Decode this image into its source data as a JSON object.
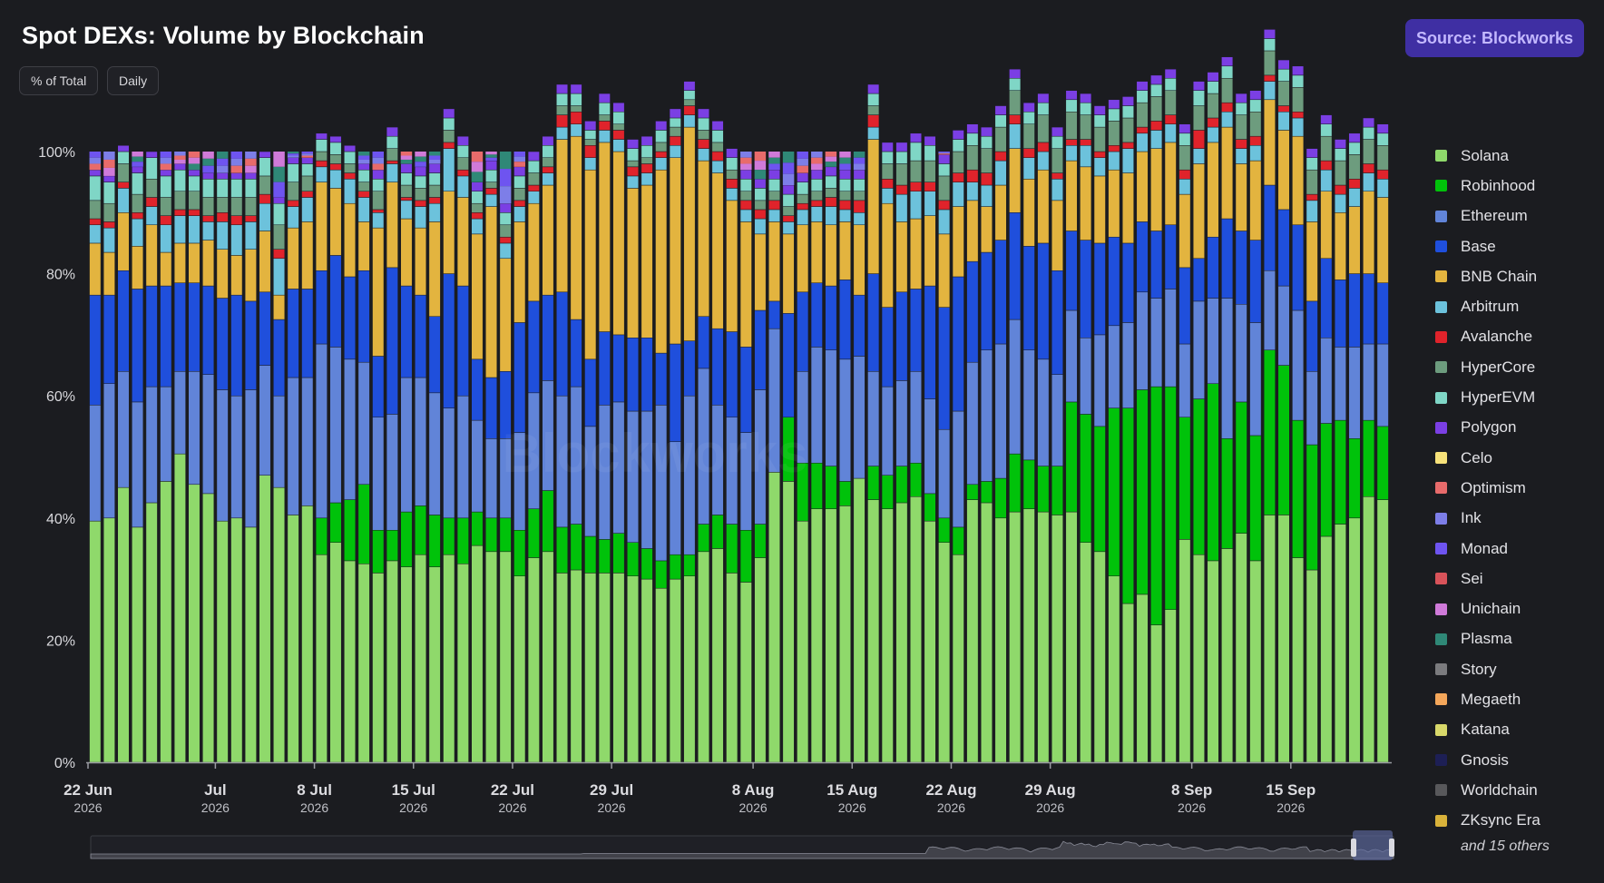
{
  "header": {
    "title": "Spot DEXs: Volume by Blockchain",
    "pill_percent": "% of Total",
    "pill_interval": "Daily",
    "source_label": "Source: Blockworks",
    "watermark": "Blockworks"
  },
  "legend_more": "and 15 others",
  "chart_data": {
    "type": "bar",
    "stacked": true,
    "normalized": true,
    "title": "Spot DEXs: Volume by Blockchain",
    "xlabel": "",
    "ylabel": "",
    "ylim": [
      0,
      100
    ],
    "y_ticks": [
      "0%",
      "20%",
      "40%",
      "60%",
      "80%",
      "100%"
    ],
    "x_ticks": [
      {
        "day": 0,
        "label": "22 Jun",
        "year": "2026"
      },
      {
        "day": 9,
        "label": "Jul",
        "year": "2026"
      },
      {
        "day": 16,
        "label": "8 Jul",
        "year": "2026"
      },
      {
        "day": 23,
        "label": "15 Jul",
        "year": "2026"
      },
      {
        "day": 30,
        "label": "22 Jul",
        "year": "2026"
      },
      {
        "day": 37,
        "label": "29 Jul",
        "year": "2026"
      },
      {
        "day": 47,
        "label": "8 Aug",
        "year": "2026"
      },
      {
        "day": 54,
        "label": "15 Aug",
        "year": "2026"
      },
      {
        "day": 61,
        "label": "22 Aug",
        "year": "2026"
      },
      {
        "day": 68,
        "label": "29 Aug",
        "year": "2026"
      },
      {
        "day": 78,
        "label": "8 Sep",
        "year": "2026"
      },
      {
        "day": 85,
        "label": "15 Sep",
        "year": "2026"
      }
    ],
    "legend_position": "right",
    "legend": [
      {
        "name": "Solana",
        "color": "#8fd96b"
      },
      {
        "name": "Robinhood",
        "color": "#00c20a"
      },
      {
        "name": "Ethereum",
        "color": "#6184d8"
      },
      {
        "name": "Base",
        "color": "#1f4fdc"
      },
      {
        "name": "BNB Chain",
        "color": "#e3b43f"
      },
      {
        "name": "Arbitrum",
        "color": "#6cc2dc"
      },
      {
        "name": "Avalanche",
        "color": "#e0232b"
      },
      {
        "name": "HyperCore",
        "color": "#6d9c7e"
      },
      {
        "name": "HyperEVM",
        "color": "#7fd6c6"
      },
      {
        "name": "Polygon",
        "color": "#7b3fe4"
      },
      {
        "name": "Celo",
        "color": "#f7e27a"
      },
      {
        "name": "Optimism",
        "color": "#e86b6b"
      },
      {
        "name": "Ink",
        "color": "#7d7ee8"
      },
      {
        "name": "Monad",
        "color": "#6e54f0"
      },
      {
        "name": "Sei",
        "color": "#d9535a"
      },
      {
        "name": "Unichain",
        "color": "#d07ad9"
      },
      {
        "name": "Plasma",
        "color": "#2f8877"
      },
      {
        "name": "Story",
        "color": "#7b7b7e"
      },
      {
        "name": "Megaeth",
        "color": "#f4a65a"
      },
      {
        "name": "Katana",
        "color": "#d8d86a"
      },
      {
        "name": "Gnosis",
        "color": "#1d1f55"
      },
      {
        "name": "Worldchain",
        "color": "#58585b"
      },
      {
        "name": "ZKsync Era",
        "color": "#d9b23a"
      }
    ],
    "stack_series": [
      "Solana",
      "Robinhood",
      "Ethereum",
      "Base",
      "BNB Chain",
      "Arbitrum",
      "Avalanche",
      "HyperCore",
      "HyperEVM",
      "Polygon"
    ],
    "series": [
      {
        "name": "Solana",
        "values": [
          39.5,
          40,
          45,
          38.5,
          42.5,
          46,
          50.5,
          45.5,
          44,
          39.5,
          40,
          38.5,
          47,
          45,
          40.5,
          42,
          34,
          36,
          33,
          32.5,
          31,
          33,
          32,
          34,
          32,
          34,
          32.5,
          35.5,
          34.5,
          34.5,
          30.5,
          33.5,
          34.5,
          31,
          31.5,
          31,
          31,
          31,
          30.5,
          30,
          28.5,
          30,
          30.5,
          34.5,
          35,
          31,
          29.5,
          33.5,
          47.5,
          46,
          39.5,
          41.5,
          41.5,
          42,
          46.5,
          43,
          41.5,
          42.5,
          43.5,
          39.5,
          36,
          34,
          43,
          42.5,
          40,
          41,
          41.5,
          41,
          40.5,
          41,
          36,
          34.5,
          30.5,
          26,
          27.5,
          22.5,
          25,
          36.5,
          34,
          33,
          35,
          37.5,
          33,
          40.5,
          40.5,
          33.5,
          31.5,
          37,
          39,
          40,
          43.5,
          43
        ]
      },
      {
        "name": "Robinhood",
        "values": [
          0,
          0,
          0,
          0,
          0,
          0,
          0,
          0,
          0,
          0,
          0,
          0,
          0,
          0,
          0,
          0,
          6,
          6.5,
          10,
          13,
          7,
          5,
          9,
          8,
          8.5,
          6,
          7.5,
          5.5,
          5.5,
          5.5,
          7.5,
          8,
          10,
          7.5,
          7.5,
          6,
          5.5,
          6.5,
          5.5,
          5,
          4.5,
          4,
          3.5,
          4.5,
          5.5,
          8,
          8.5,
          5.5,
          0,
          10.5,
          9.5,
          7.5,
          7,
          4,
          0,
          5.5,
          5.5,
          6,
          5.5,
          4.5,
          4,
          4.5,
          2.5,
          3.5,
          6.5,
          9.5,
          8,
          7.5,
          8,
          18,
          21,
          20.5,
          27.5,
          32,
          33.5,
          39,
          36.5,
          20,
          25.5,
          29,
          18,
          21.5,
          20.5,
          27,
          24.5,
          22.5,
          20.5,
          18.5,
          17,
          13,
          12.5,
          12
        ]
      },
      {
        "name": "Ethereum",
        "values": [
          19,
          22,
          19,
          20.5,
          19,
          15.5,
          13.5,
          18.5,
          19.5,
          21.5,
          20,
          22.5,
          18,
          15,
          22.5,
          21,
          28.5,
          25.5,
          23,
          20,
          18.5,
          19,
          22,
          21,
          20,
          18,
          20,
          15,
          13,
          13,
          16,
          19,
          18,
          21.5,
          22.5,
          18,
          22,
          21.5,
          21.5,
          22.5,
          25.5,
          18.5,
          26,
          25.5,
          18,
          17.5,
          16,
          22,
          23.5,
          0,
          15,
          19,
          19,
          20,
          20,
          15.5,
          14.5,
          14,
          15,
          15.5,
          14.5,
          19,
          20,
          21.5,
          22,
          22,
          18,
          17.5,
          15,
          15,
          12.5,
          15,
          13.5,
          14,
          16,
          14.5,
          16,
          12,
          16,
          14,
          23,
          16,
          18.5,
          13,
          13,
          18,
          12,
          14,
          12,
          15,
          12.5,
          13.5
        ]
      },
      {
        "name": "Base",
        "values": [
          18,
          14.5,
          16.5,
          18.5,
          16.5,
          16.5,
          14.5,
          14.5,
          14.5,
          15,
          16.5,
          14.5,
          12,
          12.5,
          14.5,
          14.5,
          12,
          15,
          13.5,
          15,
          10,
          24,
          15,
          13.5,
          12.5,
          22,
          18,
          10,
          10,
          11,
          18,
          15,
          14,
          17,
          11,
          11,
          12,
          11,
          12,
          12,
          8.5,
          16,
          9,
          8.5,
          12.5,
          14,
          14,
          13,
          4.5,
          17,
          13,
          10.5,
          10.5,
          13,
          10,
          16,
          13,
          14.5,
          13.5,
          18.5,
          20,
          22,
          16.5,
          16,
          17,
          17.5,
          17,
          19,
          17,
          13,
          16,
          15,
          14.5,
          13,
          11.5,
          11,
          10.5,
          12.5,
          7,
          10,
          13,
          12,
          13.5,
          14,
          12.5,
          14,
          11.5,
          13,
          11,
          12,
          11.5,
          10
        ]
      },
      {
        "name": "BNB Chain",
        "values": [
          8.5,
          7,
          9.5,
          7,
          10,
          5.5,
          6.5,
          6.5,
          7.5,
          8,
          6.5,
          8.5,
          10,
          4,
          10,
          11,
          14.5,
          11,
          12,
          8,
          21,
          14,
          11,
          11,
          15.5,
          13.5,
          14.5,
          20.5,
          28,
          18.5,
          16.5,
          16,
          18,
          25,
          30,
          31,
          31,
          30,
          24.5,
          25,
          30,
          30.5,
          35,
          25.5,
          25.5,
          21.5,
          20.5,
          12.5,
          13,
          13,
          11,
          10,
          10,
          9.5,
          11.5,
          22,
          17,
          11.5,
          11.5,
          11.5,
          12,
          11.5,
          10,
          7.5,
          9,
          10.5,
          11,
          12,
          11.5,
          11.5,
          12,
          11,
          11,
          11.5,
          11.5,
          13.5,
          13.5,
          12,
          15.5,
          15.5,
          15,
          11,
          13,
          14,
          13,
          14.5,
          13,
          11,
          11,
          11,
          13.5,
          14
        ]
      },
      {
        "name": "Arbitrum",
        "values": [
          3,
          4,
          4,
          4.5,
          3,
          4.5,
          4.5,
          4.5,
          3,
          4.5,
          5,
          4.5,
          4.5,
          6,
          3.5,
          4,
          2.5,
          3,
          4,
          4,
          2.5,
          3,
          3,
          3.5,
          3,
          7,
          3.5,
          2.5,
          2,
          2.5,
          2.5,
          2,
          2,
          2,
          2,
          2,
          2,
          2,
          2,
          2,
          2,
          2,
          2,
          2,
          2,
          2,
          2,
          2.5,
          2,
          2,
          2.5,
          2.5,
          3,
          2,
          2,
          2,
          2.5,
          4.5,
          4.5,
          4,
          4,
          4,
          3,
          3.5,
          4,
          4,
          3.5,
          3,
          3.5,
          2.5,
          3.5,
          3,
          3,
          4,
          3,
          3,
          3,
          2.5,
          2.5,
          2.5,
          2.5,
          2.5,
          2.5,
          3,
          3,
          3,
          3.5,
          3.5,
          3,
          3,
          3,
          3
        ]
      },
      {
        "name": "Avalanche",
        "values": [
          1,
          1,
          1,
          1,
          1.5,
          1.5,
          1,
          1,
          1,
          1.5,
          1.5,
          1,
          1.5,
          1.5,
          1,
          1,
          1,
          1,
          1,
          1,
          0.5,
          0.5,
          0.5,
          1,
          1,
          1,
          1,
          1,
          1,
          1,
          1,
          1,
          1,
          2,
          2,
          2,
          1.5,
          1.5,
          1.5,
          1.5,
          1,
          1.5,
          1.5,
          1.5,
          1.5,
          1.5,
          1.5,
          1.5,
          1.5,
          1,
          1,
          1,
          1.5,
          1.5,
          2,
          2,
          1.5,
          1.5,
          1.5,
          1.5,
          1.5,
          1.5,
          2,
          2,
          1.5,
          1.5,
          1.5,
          1.5,
          1,
          1,
          1,
          1,
          1,
          1,
          1,
          1.5,
          1.5,
          1.5,
          3,
          1.5,
          1.5,
          1.5,
          1.5,
          1,
          1,
          1,
          1,
          1.5,
          1.5,
          1.5,
          1.5,
          1.5
        ]
      },
      {
        "name": "HyperCore",
        "values": [
          3,
          3,
          3,
          3,
          3,
          3,
          3,
          3,
          3,
          2.5,
          3,
          3,
          3,
          4,
          3,
          2.5,
          1.5,
          1.5,
          1.5,
          1.5,
          3,
          2,
          2,
          2,
          2,
          2,
          2,
          1.5,
          1,
          2,
          2,
          2,
          1.5,
          1.5,
          1,
          1,
          1,
          1,
          1,
          1,
          1.5,
          1.5,
          1,
          1.5,
          1.5,
          1.5,
          1.5,
          1.5,
          1.5,
          1.5,
          1.5,
          1.5,
          1.5,
          1.5,
          1.5,
          1.5,
          2.5,
          3.5,
          3.5,
          3.5,
          4,
          3.5,
          4,
          4,
          4,
          4,
          4,
          4.5,
          4,
          4.5,
          4,
          4,
          4,
          4,
          4,
          4,
          4,
          4,
          4,
          4,
          4,
          4,
          4,
          4,
          4,
          4,
          4,
          4,
          4,
          4,
          4,
          4
        ]
      },
      {
        "name": "HyperEVM",
        "values": [
          4,
          3.5,
          2,
          3.5,
          3.5,
          3.5,
          3.5,
          2.5,
          3,
          3,
          3,
          3,
          3,
          3.5,
          3,
          2,
          2,
          2,
          2,
          2,
          2,
          2,
          2,
          2,
          2,
          2,
          2,
          2,
          2,
          2,
          2,
          2,
          2,
          2,
          2,
          1.5,
          2,
          2,
          2,
          2,
          2,
          1.5,
          1.5,
          2,
          2,
          2,
          2,
          2,
          2,
          2,
          2,
          2,
          2,
          2,
          2,
          2,
          2,
          2,
          3,
          2.5,
          2,
          2,
          2,
          2,
          2,
          2,
          2,
          2,
          2,
          2,
          2,
          2,
          2,
          2,
          2,
          2,
          2,
          2,
          2.5,
          2,
          2,
          2,
          2,
          2,
          2,
          2,
          2,
          2,
          2,
          2,
          2,
          2
        ]
      },
      {
        "name": "Polygon",
        "values": [
          1,
          1,
          1,
          1,
          1,
          1,
          1,
          1,
          1,
          1,
          1,
          1,
          1,
          1,
          1,
          1,
          1,
          1,
          1,
          1,
          1.5,
          1.5,
          1.5,
          1.5,
          1.5,
          1.5,
          1.5,
          1.5,
          1.5,
          1.5,
          1.5,
          1.5,
          1.5,
          1.5,
          1.5,
          1.5,
          1.5,
          1.5,
          1.5,
          1.5,
          1.5,
          1.5,
          1.5,
          1.5,
          1.5,
          1.5,
          1.5,
          1.5,
          1.5,
          1.5,
          1.5,
          1.5,
          1.5,
          1.5,
          1.5,
          1.5,
          1.5,
          1.5,
          1.5,
          1.5,
          1.5,
          1.5,
          1.5,
          1.5,
          1.5,
          1.5,
          1.5,
          1.5,
          1.5,
          1.5,
          1.5,
          1.5,
          1.5,
          1.5,
          1.5,
          1.5,
          1.5,
          1.5,
          1.5,
          1.5,
          1.5,
          1.5,
          1.5,
          1.5,
          1.5,
          1.5,
          1.5,
          1.5,
          1.5,
          1.5,
          1.5,
          1.5
        ]
      }
    ]
  }
}
